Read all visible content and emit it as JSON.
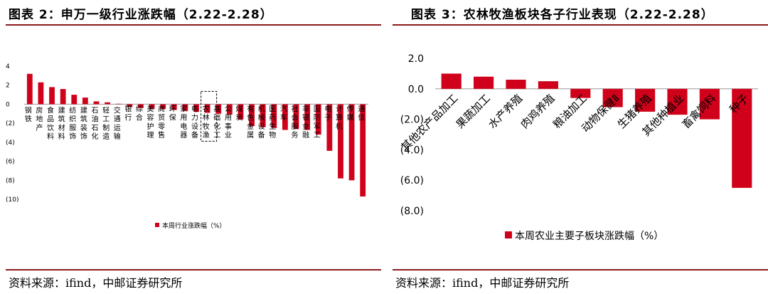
{
  "left": {
    "title": "图表 2：申万一级行业涨跌幅（2.22-2.28）",
    "source": "资料来源：ifind，中邮证券研究所",
    "chart_data": {
      "type": "bar",
      "categories": [
        "钢铁",
        "房地产",
        "食品饮料",
        "建筑材料",
        "纺织服饰",
        "建筑装饰",
        "石油石化",
        "轻工制造",
        "交通运输",
        "银行",
        "综合",
        "美容护理",
        "商贸零售",
        "环保",
        "家用电器",
        "电力设备",
        "农林牧渔",
        "基础化工",
        "公用事业",
        "煤炭",
        "有色金属",
        "机械设备",
        "医药生物",
        "汽车",
        "社会服务",
        "非银金融",
        "国防军工",
        "电子",
        "计算机",
        "传媒",
        "通信"
      ],
      "values": [
        3.2,
        2.3,
        1.8,
        1.6,
        1.0,
        0.7,
        0.3,
        0.2,
        0.05,
        -0.3,
        -0.4,
        -0.5,
        -0.5,
        -0.6,
        -0.7,
        -0.8,
        -0.9,
        -1.0,
        -1.1,
        -1.6,
        -2.3,
        -2.4,
        -2.5,
        -2.7,
        -2.6,
        -2.7,
        -3.2,
        -4.9,
        -7.8,
        -8.0,
        -9.7
      ],
      "yticks": [
        "4",
        "2",
        "0",
        "(2)",
        "(4)",
        "(6)",
        "(8)",
        "(10)"
      ],
      "ylim": [
        -10,
        4
      ],
      "highlight": "农林牧渔",
      "legend": "本周行业涨跌幅（%）",
      "color": "#d0021b",
      "legend_position": "bottom"
    }
  },
  "right": {
    "title": "图表 3：农林牧渔板块各子行业表现（2.22-2.28）",
    "source": "资料来源：ifind，中邮证券研究所",
    "chart_data": {
      "type": "bar",
      "categories": [
        "其他农产品加工",
        "果蔬加工",
        "水产养殖",
        "肉鸡养殖",
        "粮油加工",
        "动物保健Ⅱ",
        "生猪养殖",
        "其他种植业",
        "畜禽饲料",
        "种子"
      ],
      "values": [
        1.0,
        0.8,
        0.6,
        0.5,
        -0.6,
        -1.2,
        -1.5,
        -1.7,
        -2.0,
        -6.5
      ],
      "yticks": [
        "2.0",
        "0.0",
        "(2.0)",
        "(4.0)",
        "(6.0)",
        "(8.0)"
      ],
      "ylim": [
        -8,
        2
      ],
      "legend": "本周农业主要子板块涨跌幅（%）",
      "color": "#d0021b",
      "legend_position": "bottom"
    }
  }
}
